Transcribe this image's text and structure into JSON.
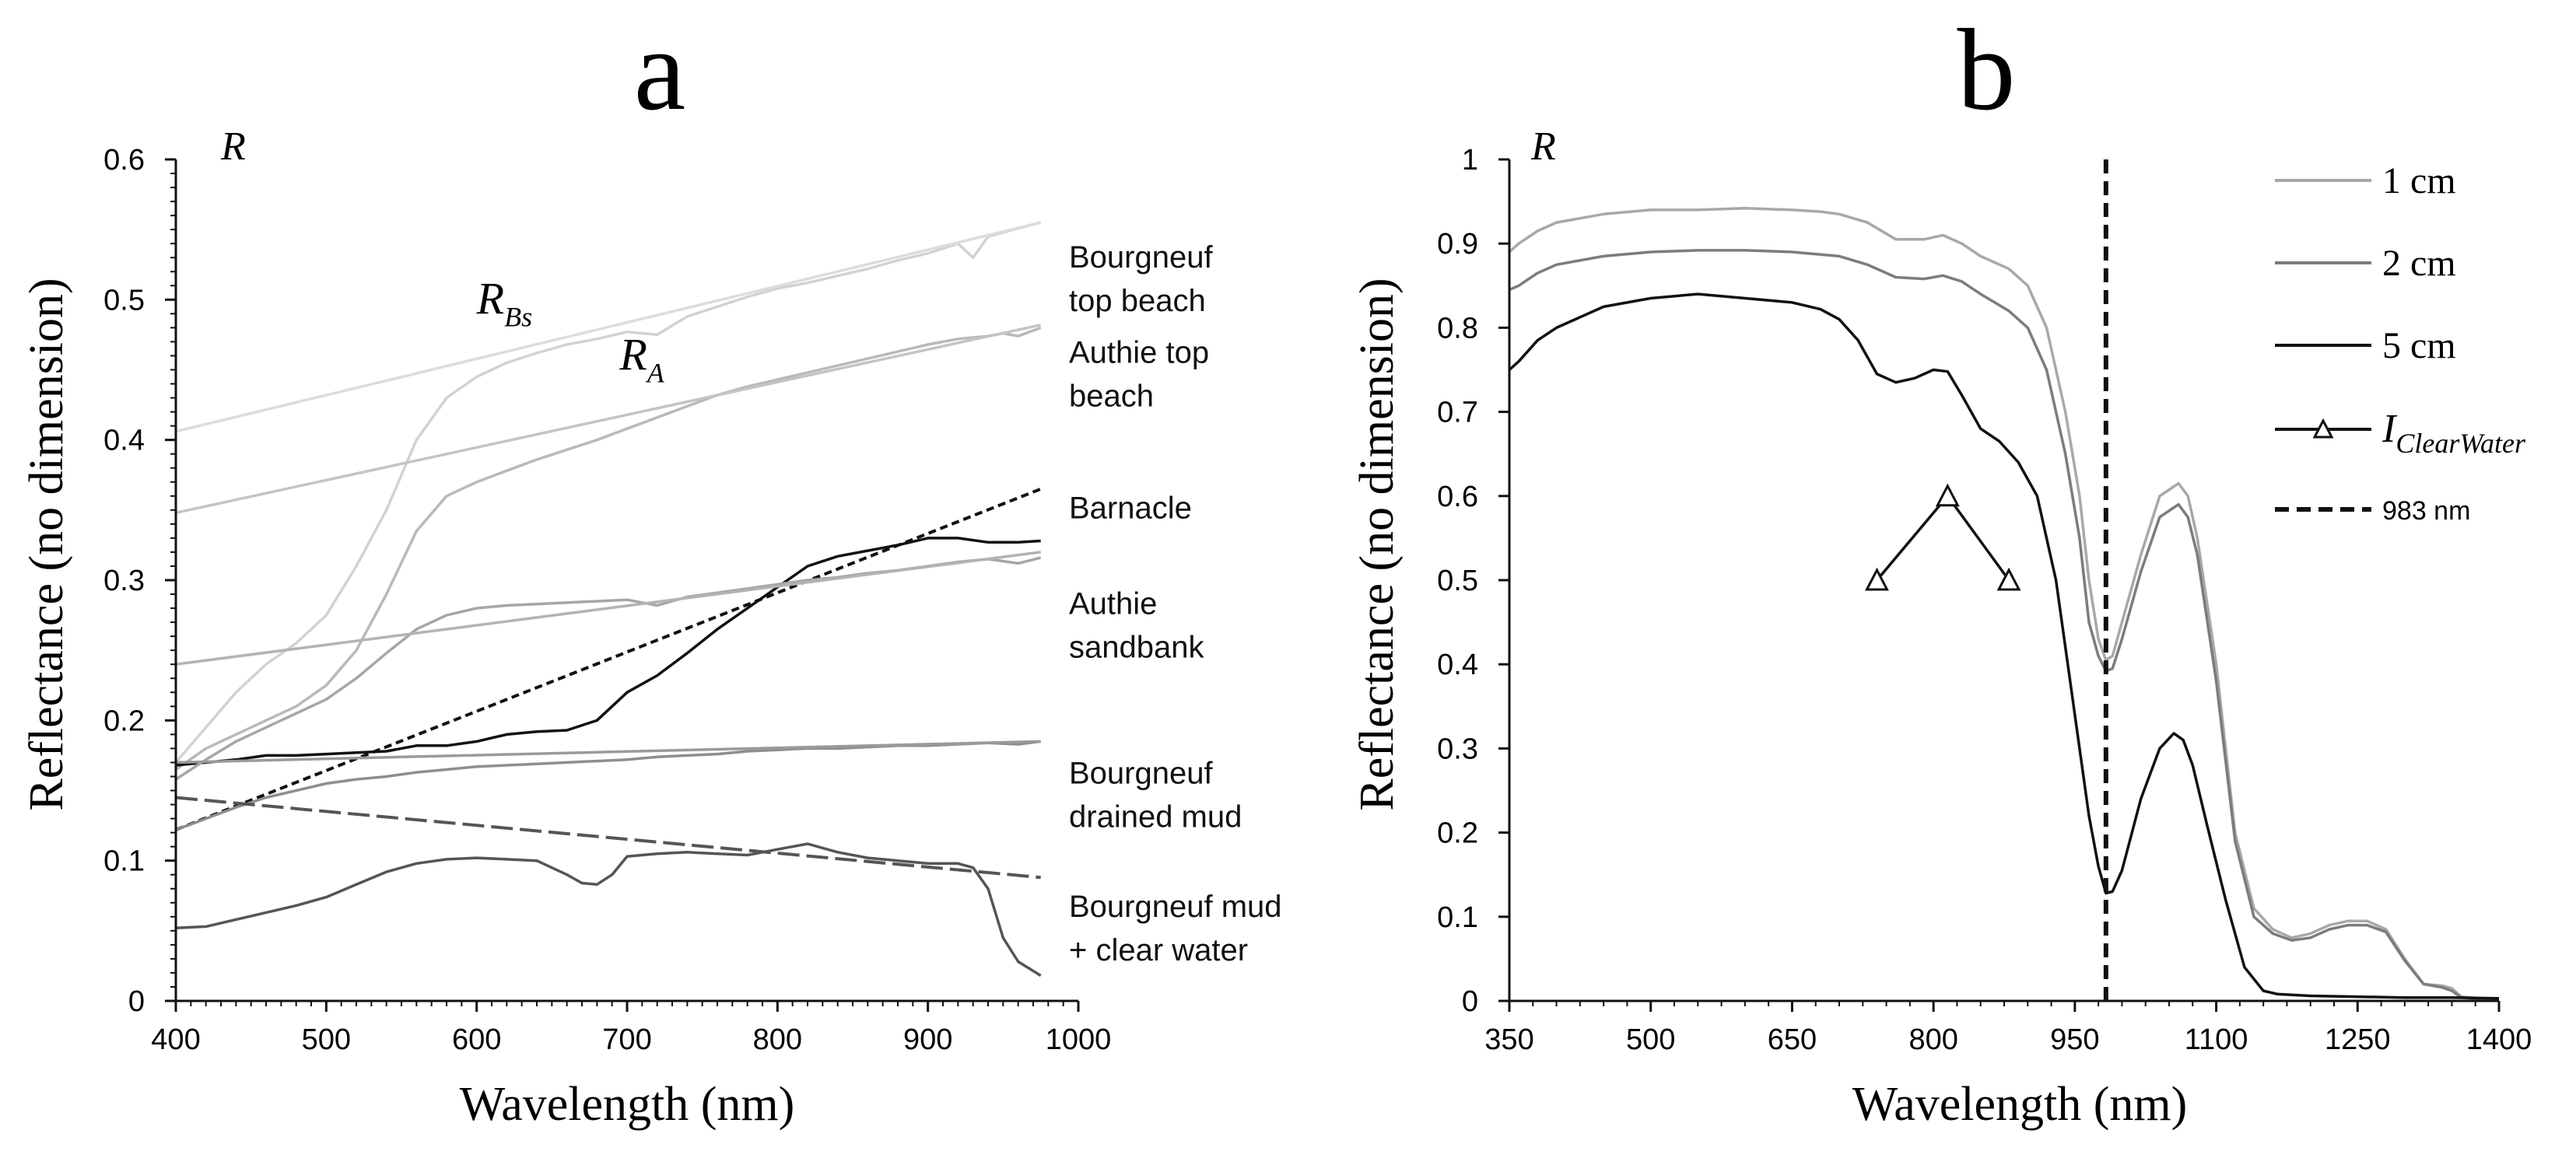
{
  "chart_data": [
    {
      "type": "line",
      "panel_label": "a",
      "xlabel": "Wavelength (nm)",
      "ylabel": "Reflectance (no dimension)",
      "corner_label": "R",
      "xlim": [
        400,
        1000
      ],
      "ylim": [
        0,
        0.6
      ],
      "xticks": [
        "400",
        "500",
        "600",
        "700",
        "800",
        "900",
        "1000"
      ],
      "yticks": [
        "0",
        "0.1",
        "0.2",
        "0.3",
        "0.4",
        "0.5",
        "0.6"
      ],
      "annotations": [
        {
          "main": "R",
          "sub": "Bs",
          "x": 600,
          "y": 0.49
        },
        {
          "main": "R",
          "sub": "A",
          "x": 695,
          "y": 0.45
        }
      ],
      "series": [
        {
          "name": "Bourgneuf top beach",
          "label_lines": [
            "Bourgneuf",
            "top beach"
          ],
          "label_y": 0.523,
          "color": "#d2d2d2",
          "x": [
            400,
            420,
            440,
            460,
            480,
            500,
            520,
            540,
            560,
            580,
            600,
            620,
            640,
            660,
            680,
            700,
            720,
            740,
            760,
            780,
            800,
            820,
            840,
            860,
            880,
            900,
            920,
            930,
            940,
            950,
            975
          ],
          "y": [
            0.17,
            0.195,
            0.22,
            0.24,
            0.255,
            0.275,
            0.31,
            0.35,
            0.4,
            0.43,
            0.445,
            0.455,
            0.462,
            0.468,
            0.472,
            0.477,
            0.475,
            0.488,
            0.495,
            0.502,
            0.508,
            0.512,
            0.517,
            0.522,
            0.528,
            0.533,
            0.54,
            0.53,
            0.545,
            0.548,
            0.555
          ]
        },
        {
          "name": "R_Bs continuum",
          "color": "#dcdcdc",
          "x": [
            400,
            975
          ],
          "y": [
            0.406,
            0.555
          ]
        },
        {
          "name": "Authie top beach",
          "label_lines": [
            "Authie top",
            "beach"
          ],
          "label_y": 0.455,
          "color": "#b9b9b9",
          "x": [
            400,
            420,
            440,
            460,
            480,
            500,
            520,
            540,
            560,
            580,
            600,
            620,
            640,
            660,
            680,
            700,
            720,
            740,
            760,
            780,
            800,
            820,
            840,
            860,
            880,
            900,
            920,
            940,
            950,
            960,
            975
          ],
          "y": [
            0.165,
            0.18,
            0.19,
            0.2,
            0.21,
            0.225,
            0.25,
            0.29,
            0.335,
            0.36,
            0.37,
            0.378,
            0.386,
            0.393,
            0.4,
            0.408,
            0.416,
            0.424,
            0.432,
            0.438,
            0.443,
            0.448,
            0.453,
            0.458,
            0.463,
            0.468,
            0.472,
            0.474,
            0.476,
            0.474,
            0.48
          ]
        },
        {
          "name": "R_A continuum",
          "color": "#c4c4c4",
          "x": [
            400,
            975
          ],
          "y": [
            0.348,
            0.482
          ]
        },
        {
          "name": "Barnacle",
          "label_lines": [
            "Barnacle"
          ],
          "label_y": 0.344,
          "color": "#111111",
          "x": [
            400,
            420,
            440,
            460,
            480,
            500,
            520,
            540,
            560,
            580,
            600,
            620,
            640,
            660,
            680,
            690,
            700,
            720,
            740,
            760,
            780,
            800,
            820,
            840,
            860,
            880,
            900,
            920,
            940,
            960,
            975
          ],
          "y": [
            0.168,
            0.17,
            0.172,
            0.175,
            0.175,
            0.176,
            0.177,
            0.178,
            0.182,
            0.182,
            0.185,
            0.19,
            0.192,
            0.193,
            0.2,
            0.21,
            0.22,
            0.232,
            0.248,
            0.265,
            0.28,
            0.295,
            0.31,
            0.317,
            0.321,
            0.325,
            0.33,
            0.33,
            0.327,
            0.327,
            0.328
          ]
        },
        {
          "name": "Barnacle slope",
          "color": "#111111",
          "dash": "10,6",
          "x": [
            400,
            975
          ],
          "y": [
            0.122,
            0.365
          ]
        },
        {
          "name": "Authie sandbank",
          "label_lines": [
            "Authie",
            "sandbank"
          ],
          "label_y": 0.276,
          "color": "#a6a6a6",
          "x": [
            400,
            420,
            440,
            460,
            480,
            500,
            520,
            540,
            560,
            580,
            600,
            620,
            640,
            660,
            680,
            700,
            720,
            740,
            760,
            780,
            800,
            820,
            840,
            860,
            880,
            900,
            920,
            940,
            960,
            975
          ],
          "y": [
            0.158,
            0.172,
            0.185,
            0.195,
            0.205,
            0.215,
            0.23,
            0.248,
            0.265,
            0.275,
            0.28,
            0.282,
            0.283,
            0.284,
            0.285,
            0.286,
            0.282,
            0.288,
            0.291,
            0.294,
            0.297,
            0.3,
            0.302,
            0.305,
            0.307,
            0.31,
            0.313,
            0.315,
            0.312,
            0.316
          ]
        },
        {
          "name": "Authie sandbank continuum",
          "color": "#b3b3b3",
          "x": [
            400,
            975
          ],
          "y": [
            0.24,
            0.32
          ]
        },
        {
          "name": "Bourgneuf drained mud",
          "label_lines": [
            "Bourgneuf",
            "drained mud"
          ],
          "label_y": 0.155,
          "color": "#8e8e8e",
          "x": [
            400,
            420,
            440,
            460,
            480,
            500,
            520,
            540,
            560,
            580,
            600,
            620,
            640,
            660,
            680,
            700,
            720,
            740,
            760,
            780,
            800,
            820,
            840,
            860,
            880,
            900,
            920,
            940,
            960,
            975
          ],
          "y": [
            0.122,
            0.13,
            0.138,
            0.145,
            0.15,
            0.155,
            0.158,
            0.16,
            0.163,
            0.165,
            0.167,
            0.168,
            0.169,
            0.17,
            0.171,
            0.172,
            0.174,
            0.175,
            0.176,
            0.178,
            0.179,
            0.18,
            0.18,
            0.181,
            0.182,
            0.182,
            0.183,
            0.184,
            0.183,
            0.185
          ]
        },
        {
          "name": "Bourgneuf drained mud continuum",
          "color": "#9a9a9a",
          "x": [
            400,
            975
          ],
          "y": [
            0.17,
            0.185
          ]
        },
        {
          "name": "Bourgneuf mud + clear water",
          "label_lines": [
            "Bourgneuf mud",
            "+ clear water"
          ],
          "label_y": 0.06,
          "color": "#555555",
          "x": [
            400,
            420,
            440,
            460,
            480,
            500,
            520,
            540,
            560,
            580,
            600,
            620,
            640,
            660,
            670,
            680,
            690,
            700,
            720,
            740,
            760,
            780,
            800,
            820,
            840,
            860,
            880,
            900,
            920,
            930,
            940,
            950,
            960,
            975
          ],
          "y": [
            0.052,
            0.053,
            0.058,
            0.063,
            0.068,
            0.074,
            0.083,
            0.092,
            0.098,
            0.101,
            0.102,
            0.101,
            0.1,
            0.09,
            0.084,
            0.083,
            0.09,
            0.103,
            0.105,
            0.106,
            0.105,
            0.104,
            0.108,
            0.112,
            0.106,
            0.102,
            0.1,
            0.098,
            0.098,
            0.095,
            0.08,
            0.045,
            0.028,
            0.018
          ]
        },
        {
          "name": "Mud continuum",
          "color": "#555555",
          "dash": "28,9",
          "x": [
            400,
            975
          ],
          "y": [
            0.145,
            0.088
          ]
        }
      ]
    },
    {
      "type": "line",
      "panel_label": "b",
      "xlabel": "Wavelength (nm)",
      "ylabel": "Reflectance (no dimension)",
      "corner_label": "R",
      "xlim": [
        350,
        1400
      ],
      "ylim": [
        0,
        1
      ],
      "xticks": [
        "350",
        "500",
        "650",
        "800",
        "950",
        "1100",
        "1250",
        "1400"
      ],
      "yticks": [
        "0",
        "0.1",
        "0.2",
        "0.3",
        "0.4",
        "0.5",
        "0.6",
        "0.7",
        "0.8",
        "0.9",
        "1"
      ],
      "legend": [
        {
          "label": "1 cm",
          "style": "line",
          "color": "#a8a8a8"
        },
        {
          "label": "2 cm",
          "style": "line",
          "color": "#7c7c7c"
        },
        {
          "label": "5 cm",
          "style": "line",
          "color": "#111111"
        },
        {
          "label": "I",
          "label_sub": "ClearWater",
          "style": "triangle",
          "color": "#111111"
        },
        {
          "label": "983 nm",
          "style": "dashed",
          "color": "#111111"
        }
      ],
      "vline": {
        "x": 983,
        "label": "983 nm"
      },
      "series": [
        {
          "name": "1 cm",
          "color": "#a8a8a8",
          "x": [
            350,
            360,
            380,
            400,
            450,
            500,
            550,
            600,
            650,
            680,
            700,
            730,
            760,
            790,
            810,
            830,
            850,
            880,
            900,
            920,
            940,
            955,
            965,
            975,
            983,
            990,
            1000,
            1020,
            1040,
            1060,
            1070,
            1080,
            1100,
            1120,
            1140,
            1160,
            1180,
            1200,
            1220,
            1240,
            1260,
            1280,
            1300,
            1320,
            1340,
            1350,
            1360,
            1380,
            1400
          ],
          "y": [
            0.89,
            0.9,
            0.915,
            0.925,
            0.935,
            0.94,
            0.94,
            0.942,
            0.94,
            0.938,
            0.935,
            0.925,
            0.905,
            0.905,
            0.91,
            0.9,
            0.885,
            0.87,
            0.85,
            0.8,
            0.7,
            0.6,
            0.5,
            0.43,
            0.405,
            0.41,
            0.45,
            0.53,
            0.6,
            0.615,
            0.6,
            0.55,
            0.4,
            0.2,
            0.11,
            0.085,
            0.075,
            0.08,
            0.09,
            0.095,
            0.095,
            0.085,
            0.05,
            0.02,
            0.018,
            0.015,
            0.005,
            0.003,
            0.003
          ]
        },
        {
          "name": "2 cm",
          "color": "#7c7c7c",
          "x": [
            350,
            360,
            380,
            400,
            450,
            500,
            550,
            600,
            650,
            680,
            700,
            730,
            760,
            790,
            810,
            830,
            850,
            880,
            900,
            920,
            940,
            955,
            965,
            975,
            983,
            990,
            1000,
            1020,
            1040,
            1060,
            1070,
            1080,
            1100,
            1120,
            1140,
            1160,
            1180,
            1200,
            1220,
            1240,
            1260,
            1280,
            1300,
            1320,
            1340,
            1350,
            1360,
            1380,
            1400
          ],
          "y": [
            0.845,
            0.85,
            0.865,
            0.875,
            0.885,
            0.89,
            0.892,
            0.892,
            0.89,
            0.887,
            0.885,
            0.875,
            0.86,
            0.858,
            0.862,
            0.855,
            0.84,
            0.82,
            0.8,
            0.75,
            0.65,
            0.55,
            0.45,
            0.41,
            0.392,
            0.395,
            0.43,
            0.51,
            0.575,
            0.59,
            0.575,
            0.53,
            0.38,
            0.19,
            0.1,
            0.08,
            0.072,
            0.075,
            0.085,
            0.09,
            0.09,
            0.082,
            0.048,
            0.02,
            0.016,
            0.012,
            0.004,
            0.002,
            0.002
          ]
        },
        {
          "name": "5 cm",
          "color": "#111111",
          "x": [
            350,
            360,
            380,
            400,
            450,
            500,
            550,
            600,
            650,
            680,
            700,
            720,
            740,
            760,
            780,
            800,
            815,
            830,
            850,
            870,
            890,
            910,
            930,
            945,
            955,
            965,
            975,
            983,
            990,
            1000,
            1020,
            1040,
            1055,
            1065,
            1075,
            1090,
            1110,
            1130,
            1150,
            1165,
            1200,
            1250,
            1300,
            1350,
            1400
          ],
          "y": [
            0.75,
            0.76,
            0.785,
            0.8,
            0.825,
            0.835,
            0.84,
            0.835,
            0.83,
            0.822,
            0.81,
            0.785,
            0.745,
            0.735,
            0.74,
            0.75,
            0.748,
            0.72,
            0.68,
            0.665,
            0.64,
            0.6,
            0.5,
            0.38,
            0.3,
            0.22,
            0.16,
            0.128,
            0.13,
            0.155,
            0.24,
            0.3,
            0.318,
            0.31,
            0.28,
            0.21,
            0.12,
            0.04,
            0.012,
            0.008,
            0.006,
            0.005,
            0.004,
            0.004,
            0.003
          ]
        },
        {
          "name": "I_ClearWater",
          "color": "#111111",
          "marker": "triangle",
          "x": [
            740,
            815,
            880
          ],
          "y": [
            0.5,
            0.6,
            0.5
          ]
        }
      ]
    }
  ]
}
